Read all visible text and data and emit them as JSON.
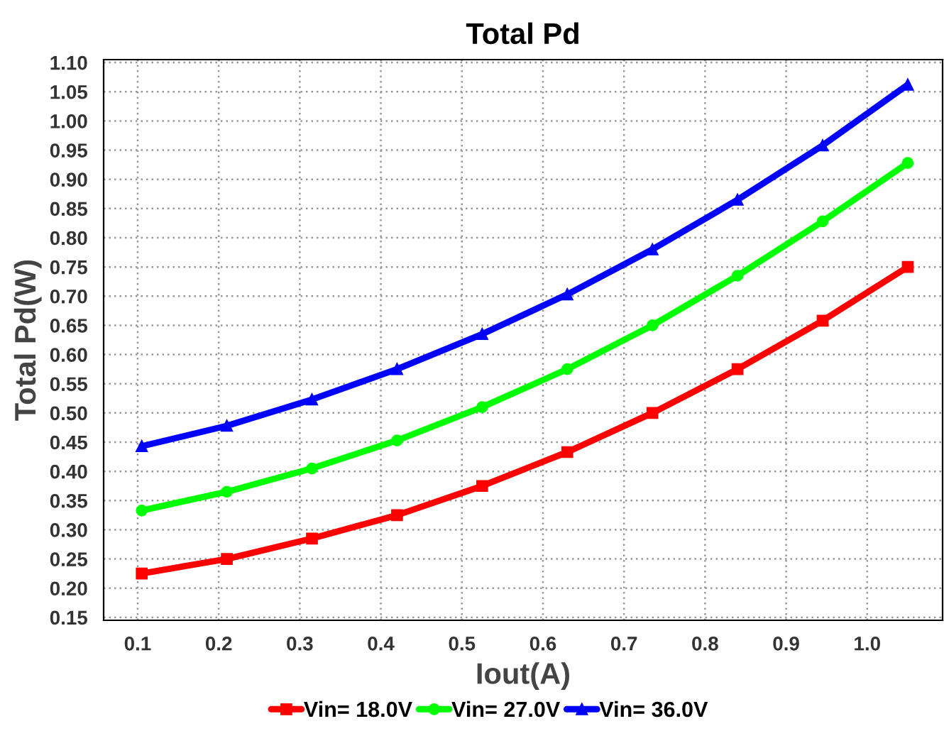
{
  "chart_data": {
    "type": "line",
    "title": "Total Pd",
    "xlabel": "Iout(A)",
    "ylabel": "Total Pd(W)",
    "x": [
      0.105,
      0.21,
      0.315,
      0.42,
      0.525,
      0.63,
      0.735,
      0.84,
      0.945,
      1.05
    ],
    "series": [
      {
        "name": "Vin= 18.0V",
        "color": "#ff0000",
        "marker": "square",
        "values": [
          0.225,
          0.25,
          0.285,
          0.325,
          0.375,
          0.433,
          0.5,
          0.575,
          0.658,
          0.75
        ]
      },
      {
        "name": "Vin= 27.0V",
        "color": "#00ff00",
        "marker": "circle",
        "values": [
          0.333,
          0.365,
          0.405,
          0.453,
          0.51,
          0.575,
          0.65,
          0.735,
          0.828,
          0.928
        ]
      },
      {
        "name": "Vin= 36.0V",
        "color": "#0000ff",
        "marker": "triangle",
        "values": [
          0.443,
          0.478,
          0.523,
          0.575,
          0.635,
          0.703,
          0.78,
          0.865,
          0.958,
          1.062
        ]
      }
    ],
    "xlim": [
      0.058,
      1.093
    ],
    "xticks": [
      {
        "value": 0.1,
        "label": "0.1"
      },
      {
        "value": 0.2,
        "label": "0.2"
      },
      {
        "value": 0.3,
        "label": "0.3"
      },
      {
        "value": 0.4,
        "label": "0.4"
      },
      {
        "value": 0.5,
        "label": "0.5"
      },
      {
        "value": 0.6,
        "label": "0.6"
      },
      {
        "value": 0.7,
        "label": "0.7"
      },
      {
        "value": 0.8,
        "label": "0.8"
      },
      {
        "value": 0.9,
        "label": "0.9"
      },
      {
        "value": 1.0,
        "label": "1.0"
      }
    ],
    "ylim": [
      0.145,
      1.105
    ],
    "yticks": [
      {
        "value": 0.15,
        "label": "0.15"
      },
      {
        "value": 0.2,
        "label": "0.20"
      },
      {
        "value": 0.25,
        "label": "0.25"
      },
      {
        "value": 0.3,
        "label": "0.30"
      },
      {
        "value": 0.35,
        "label": "0.35"
      },
      {
        "value": 0.4,
        "label": "0.40"
      },
      {
        "value": 0.45,
        "label": "0.45"
      },
      {
        "value": 0.5,
        "label": "0.50"
      },
      {
        "value": 0.55,
        "label": "0.55"
      },
      {
        "value": 0.6,
        "label": "0.60"
      },
      {
        "value": 0.65,
        "label": "0.65"
      },
      {
        "value": 0.7,
        "label": "0.70"
      },
      {
        "value": 0.75,
        "label": "0.75"
      },
      {
        "value": 0.8,
        "label": "0.80"
      },
      {
        "value": 0.85,
        "label": "0.85"
      },
      {
        "value": 0.9,
        "label": "0.90"
      },
      {
        "value": 0.95,
        "label": "0.95"
      },
      {
        "value": 1.0,
        "label": "1.00"
      },
      {
        "value": 1.05,
        "label": "1.05"
      },
      {
        "value": 1.1,
        "label": "1.10"
      }
    ],
    "grid": true,
    "legend": "bottom",
    "line_style": "solid"
  }
}
